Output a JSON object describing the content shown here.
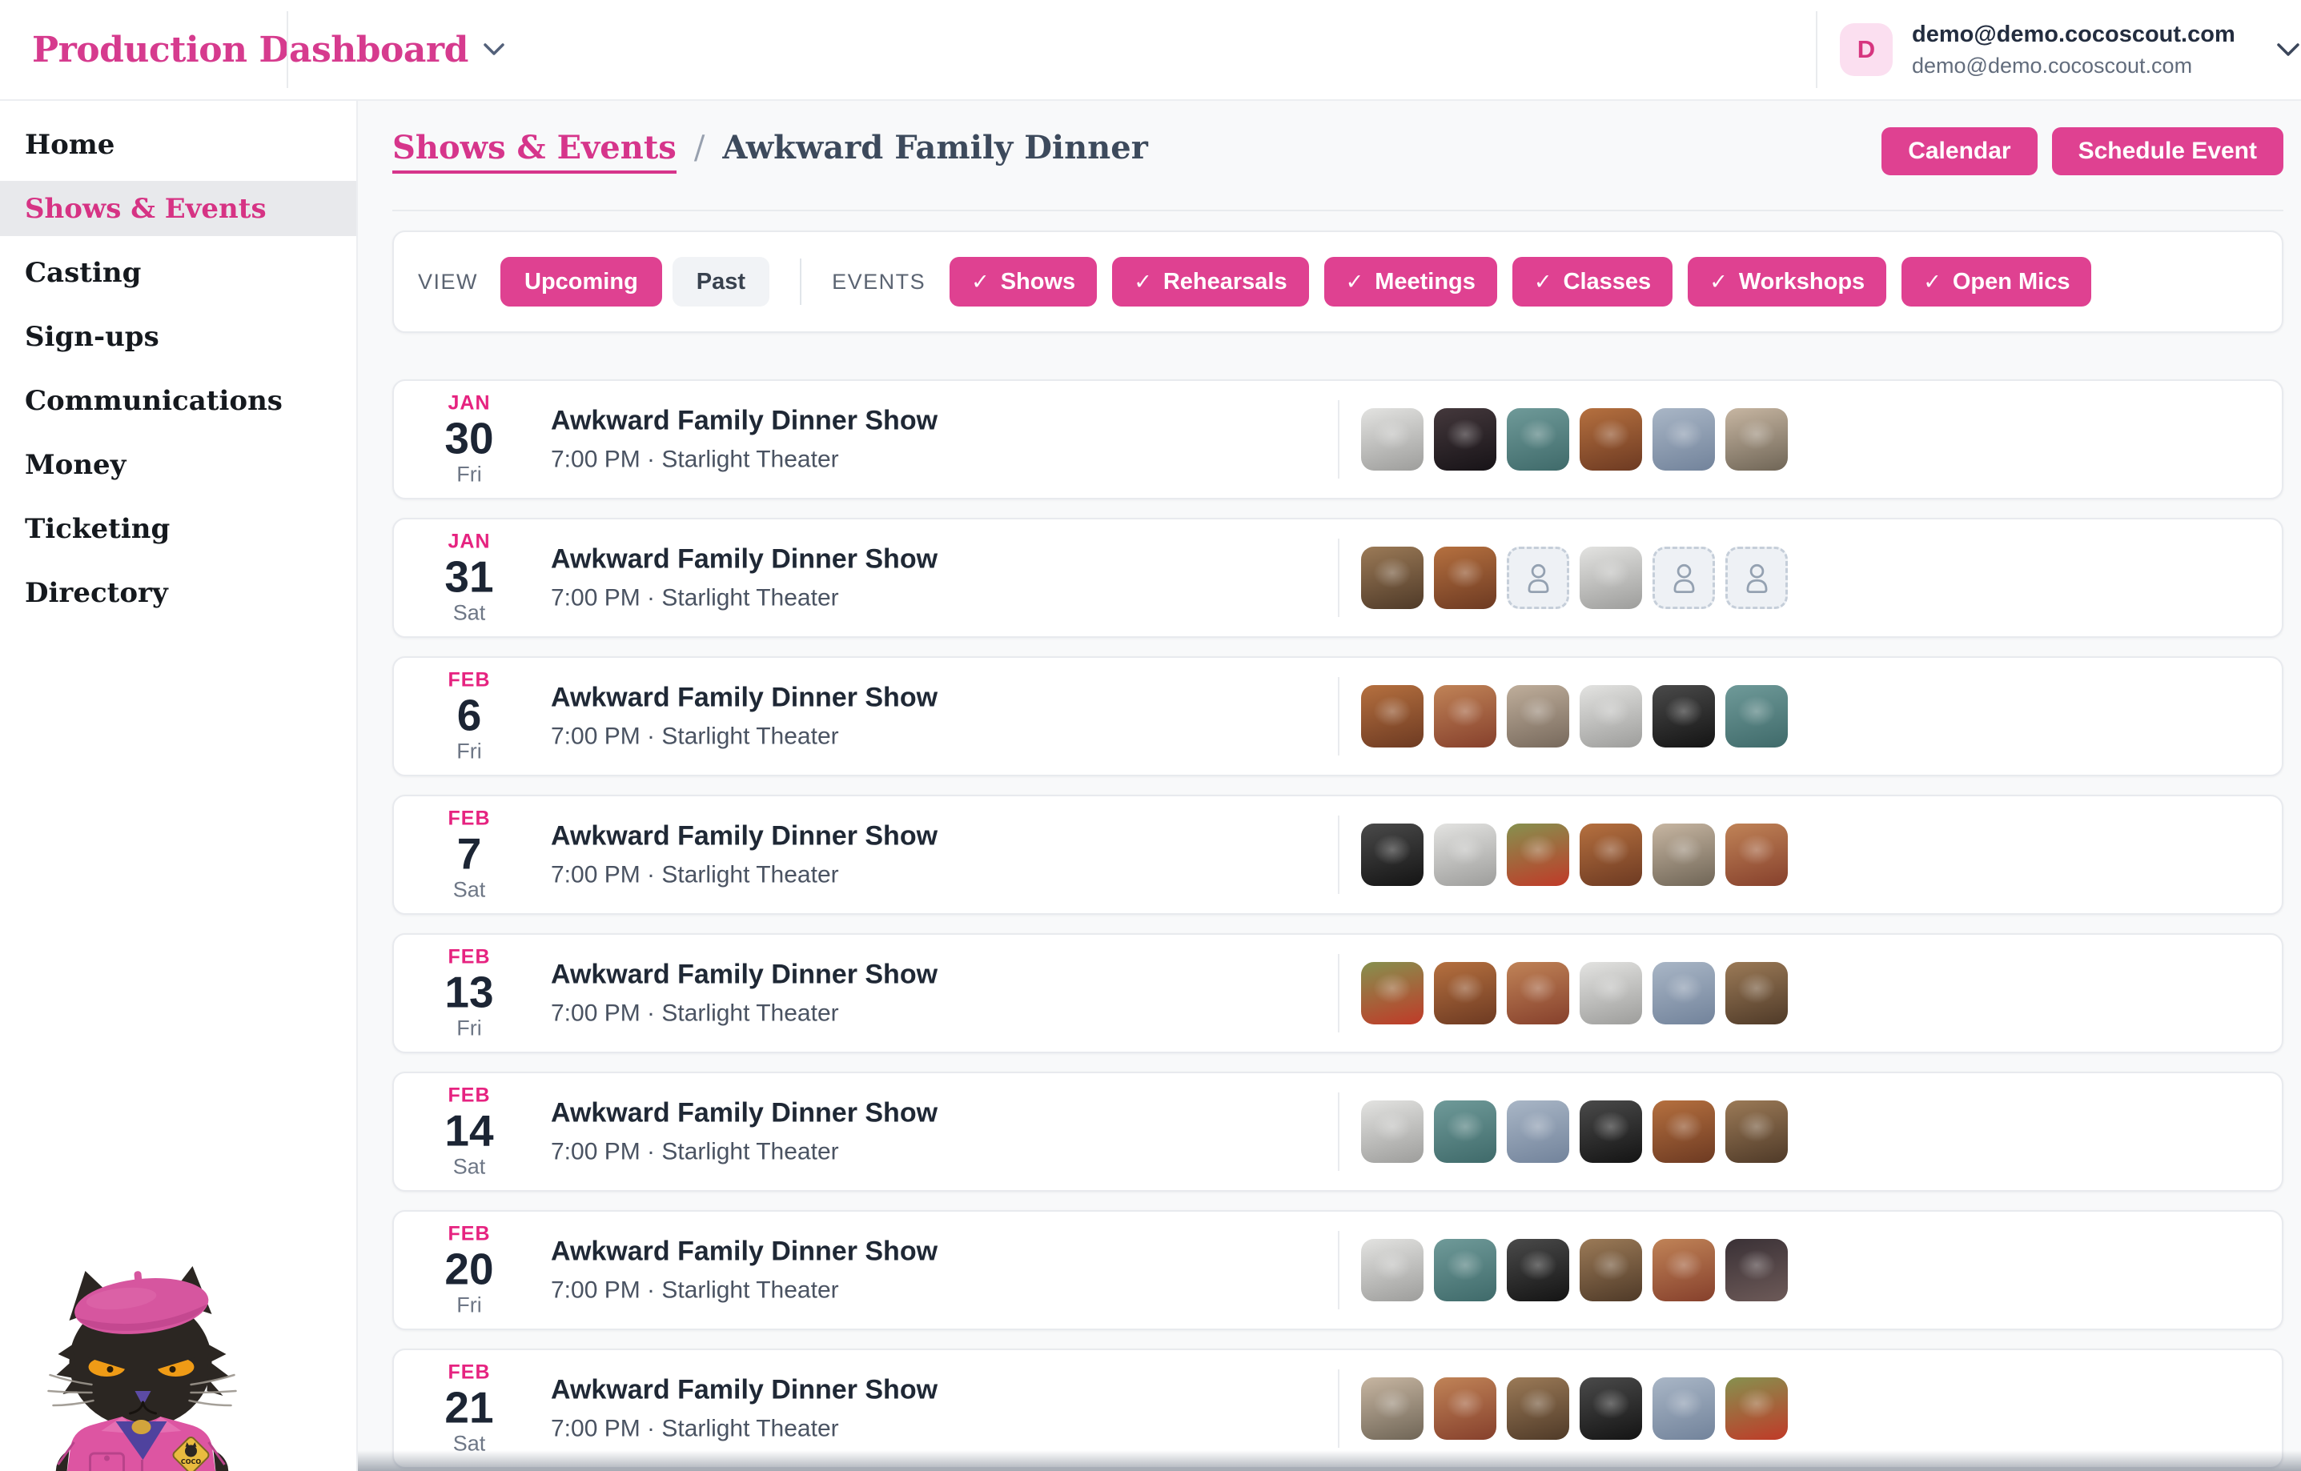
{
  "header": {
    "title": "Production Dashboard",
    "account": {
      "initial": "D",
      "name": "demo@demo.cocoscout.com",
      "email": "demo@demo.cocoscout.com"
    }
  },
  "sidebar": {
    "items": [
      {
        "label": "Home",
        "active": false
      },
      {
        "label": "Shows & Events",
        "active": true
      },
      {
        "label": "Casting",
        "active": false
      },
      {
        "label": "Sign-ups",
        "active": false
      },
      {
        "label": "Communications",
        "active": false
      },
      {
        "label": "Money",
        "active": false
      },
      {
        "label": "Ticketing",
        "active": false
      },
      {
        "label": "Directory",
        "active": false
      }
    ]
  },
  "breadcrumb": {
    "link": "Shows & Events",
    "separator": "/",
    "current": "Awkward Family Dinner"
  },
  "actions": {
    "calendar_label": "Calendar",
    "schedule_label": "Schedule Event"
  },
  "filters": {
    "view_label": "VIEW",
    "view_options": [
      {
        "label": "Upcoming",
        "selected": true
      },
      {
        "label": "Past",
        "selected": false
      }
    ],
    "events_label": "EVENTS",
    "check_glyph": "✓",
    "event_types": [
      {
        "label": "Shows",
        "checked": true
      },
      {
        "label": "Rehearsals",
        "checked": true
      },
      {
        "label": "Meetings",
        "checked": true
      },
      {
        "label": "Classes",
        "checked": true
      },
      {
        "label": "Workshops",
        "checked": true
      },
      {
        "label": "Open Mics",
        "checked": true
      }
    ]
  },
  "events": [
    {
      "month": "JAN",
      "day": "30",
      "weekday": "Fri",
      "title": "Awkward Family Dinner Show",
      "details": "7:00 PM · Starlight Theater",
      "avatars": [
        {
          "kind": "photo",
          "from": "#e3e3e1",
          "to": "#9d9d9b"
        },
        {
          "kind": "photo",
          "from": "#44383c",
          "to": "#171317"
        },
        {
          "kind": "photo",
          "from": "#6f9a99",
          "to": "#3f6a6a"
        },
        {
          "kind": "photo",
          "from": "#b5703f",
          "to": "#6d3a22"
        },
        {
          "kind": "photo",
          "from": "#a9b6c6",
          "to": "#72839b"
        },
        {
          "kind": "photo",
          "from": "#c7b6a2",
          "to": "#6f6556"
        }
      ]
    },
    {
      "month": "JAN",
      "day": "31",
      "weekday": "Sat",
      "title": "Awkward Family Dinner Show",
      "details": "7:00 PM · Starlight Theater",
      "avatars": [
        {
          "kind": "photo",
          "from": "#9b7a57",
          "to": "#4f3a28"
        },
        {
          "kind": "photo",
          "from": "#b5703f",
          "to": "#6d3a22"
        },
        {
          "kind": "empty"
        },
        {
          "kind": "photo",
          "from": "#e3e3e1",
          "to": "#9d9d9b"
        },
        {
          "kind": "empty"
        },
        {
          "kind": "empty"
        }
      ]
    },
    {
      "month": "FEB",
      "day": "6",
      "weekday": "Fri",
      "title": "Awkward Family Dinner Show",
      "details": "7:00 PM · Starlight Theater",
      "avatars": [
        {
          "kind": "photo",
          "from": "#b5703f",
          "to": "#6d3a22"
        },
        {
          "kind": "photo",
          "from": "#c08357",
          "to": "#86402c"
        },
        {
          "kind": "photo",
          "from": "#bfae9b",
          "to": "#77695c"
        },
        {
          "kind": "photo",
          "from": "#e3e3e1",
          "to": "#9d9d9b"
        },
        {
          "kind": "photo",
          "from": "#4a4a4a",
          "to": "#141414"
        },
        {
          "kind": "photo",
          "from": "#6f9a99",
          "to": "#3f6a6a"
        }
      ]
    },
    {
      "month": "FEB",
      "day": "7",
      "weekday": "Sat",
      "title": "Awkward Family Dinner Show",
      "details": "7:00 PM · Starlight Theater",
      "avatars": [
        {
          "kind": "photo",
          "from": "#4a4a4a",
          "to": "#141414"
        },
        {
          "kind": "photo",
          "from": "#e3e3e1",
          "to": "#9d9d9b"
        },
        {
          "kind": "photo",
          "from": "#86914f",
          "to": "#c03a28"
        },
        {
          "kind": "photo",
          "from": "#b5703f",
          "to": "#6d3a22"
        },
        {
          "kind": "photo",
          "from": "#c7b6a2",
          "to": "#6f6556"
        },
        {
          "kind": "photo",
          "from": "#c08357",
          "to": "#86402c"
        }
      ]
    },
    {
      "month": "FEB",
      "day": "13",
      "weekday": "Fri",
      "title": "Awkward Family Dinner Show",
      "details": "7:00 PM · Starlight Theater",
      "avatars": [
        {
          "kind": "photo",
          "from": "#86914f",
          "to": "#c03a28"
        },
        {
          "kind": "photo",
          "from": "#b5703f",
          "to": "#6d3a22"
        },
        {
          "kind": "photo",
          "from": "#c08357",
          "to": "#86402c"
        },
        {
          "kind": "photo",
          "from": "#e3e3e1",
          "to": "#9d9d9b"
        },
        {
          "kind": "photo",
          "from": "#a9b6c6",
          "to": "#72839b"
        },
        {
          "kind": "photo",
          "from": "#9b7a57",
          "to": "#4f3a28"
        }
      ]
    },
    {
      "month": "FEB",
      "day": "14",
      "weekday": "Sat",
      "title": "Awkward Family Dinner Show",
      "details": "7:00 PM · Starlight Theater",
      "avatars": [
        {
          "kind": "photo",
          "from": "#e3e3e1",
          "to": "#9d9d9b"
        },
        {
          "kind": "photo",
          "from": "#6f9a99",
          "to": "#3f6a6a"
        },
        {
          "kind": "photo",
          "from": "#a9b6c6",
          "to": "#72839b"
        },
        {
          "kind": "photo",
          "from": "#4a4a4a",
          "to": "#141414"
        },
        {
          "kind": "photo",
          "from": "#b5703f",
          "to": "#6d3a22"
        },
        {
          "kind": "photo",
          "from": "#9b7a57",
          "to": "#4f3a28"
        }
      ]
    },
    {
      "month": "FEB",
      "day": "20",
      "weekday": "Fri",
      "title": "Awkward Family Dinner Show",
      "details": "7:00 PM · Starlight Theater",
      "avatars": [
        {
          "kind": "photo",
          "from": "#e3e3e1",
          "to": "#9d9d9b"
        },
        {
          "kind": "photo",
          "from": "#6f9a99",
          "to": "#3f6a6a"
        },
        {
          "kind": "photo",
          "from": "#4a4a4a",
          "to": "#141414"
        },
        {
          "kind": "photo",
          "from": "#9b7a57",
          "to": "#4f3a28"
        },
        {
          "kind": "photo",
          "from": "#c08357",
          "to": "#86402c"
        },
        {
          "kind": "photo",
          "from": "#3a3136",
          "to": "#6d5a58"
        }
      ]
    },
    {
      "month": "FEB",
      "day": "21",
      "weekday": "Sat",
      "title": "Awkward Family Dinner Show",
      "details": "7:00 PM · Starlight Theater",
      "avatars": [
        {
          "kind": "photo",
          "from": "#c7b6a2",
          "to": "#6f6556"
        },
        {
          "kind": "photo",
          "from": "#c08357",
          "to": "#86402c"
        },
        {
          "kind": "photo",
          "from": "#9b7a57",
          "to": "#4f3a28"
        },
        {
          "kind": "photo",
          "from": "#4a4a4a",
          "to": "#141414"
        },
        {
          "kind": "photo",
          "from": "#a9b6c6",
          "to": "#72839b"
        },
        {
          "kind": "photo",
          "from": "#86914f",
          "to": "#c03a28"
        }
      ]
    }
  ],
  "colors": {
    "accent": "#df4191",
    "accent_deep": "#d63384",
    "brand_title": "#d63b8e",
    "month_label": "#e62380",
    "page_bg": "#f8f9fa"
  }
}
